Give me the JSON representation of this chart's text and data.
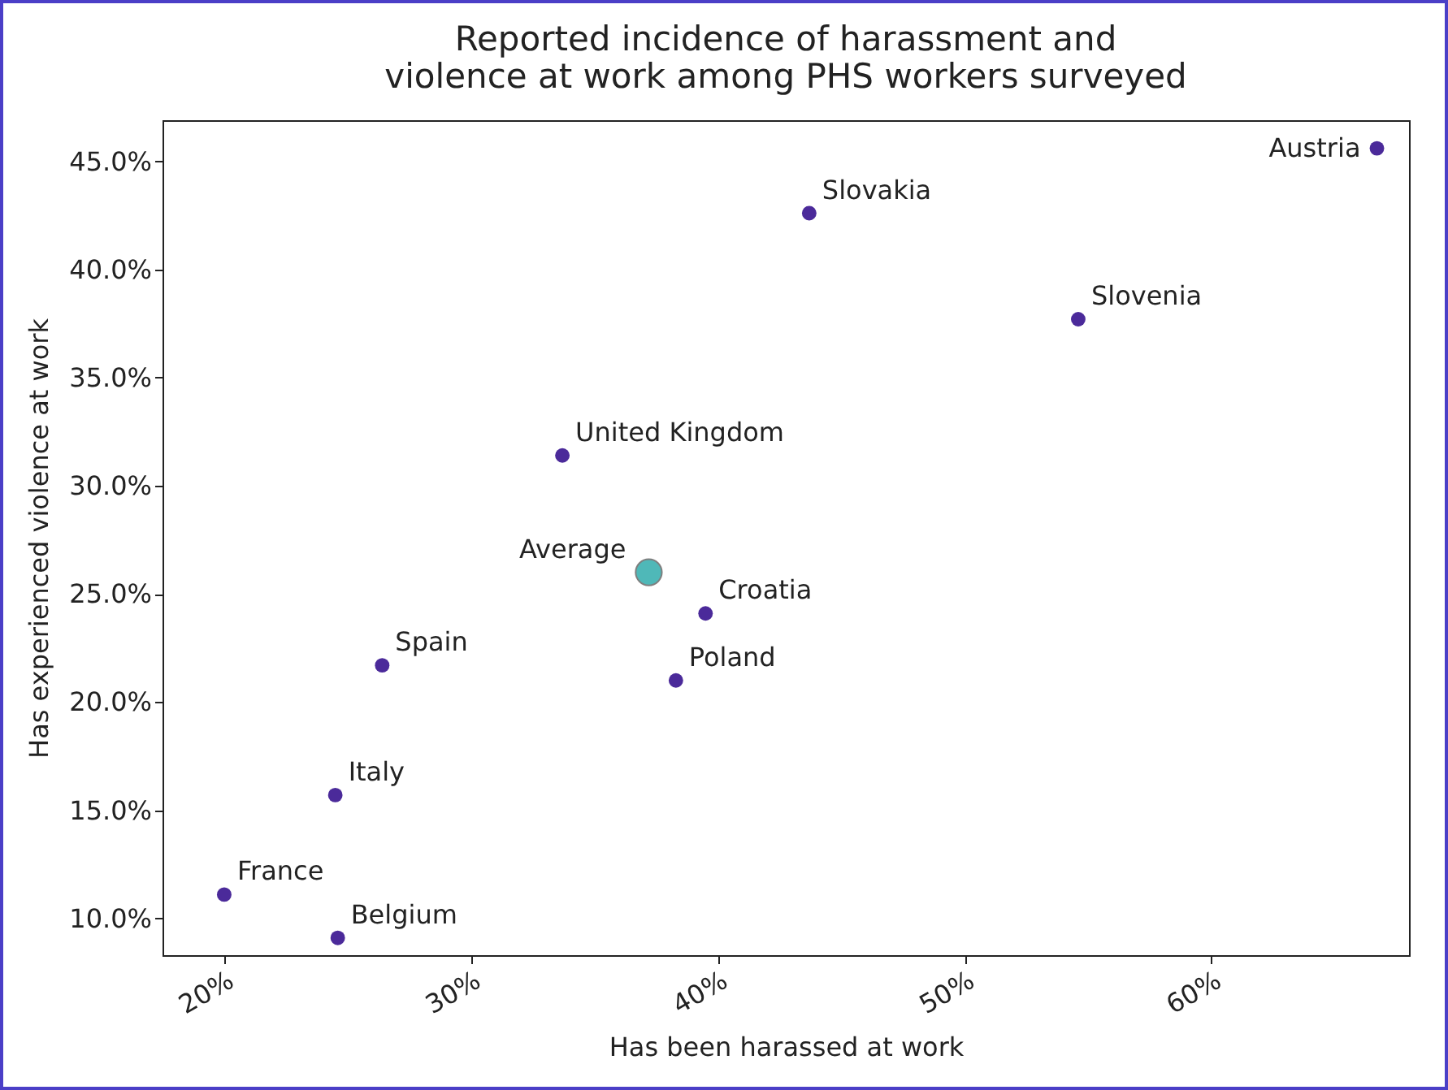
{
  "chart_data": {
    "type": "scatter",
    "title": [
      "Reported incidence of harassment and",
      "violence at work among PHS workers surveyed"
    ],
    "xlabel": "Has been harassed at work",
    "ylabel": "Has experienced violence at work",
    "xlim": [
      17.5,
      68
    ],
    "ylim": [
      8.3,
      46.9
    ],
    "xticks": [
      {
        "value": 20,
        "label": "20%"
      },
      {
        "value": 30,
        "label": "30%"
      },
      {
        "value": 40,
        "label": "40%"
      },
      {
        "value": 50,
        "label": "50%"
      },
      {
        "value": 60,
        "label": "60%"
      }
    ],
    "yticks": [
      {
        "value": 10,
        "label": "10.0%"
      },
      {
        "value": 15,
        "label": "15.0%"
      },
      {
        "value": 20,
        "label": "20.0%"
      },
      {
        "value": 25,
        "label": "25.0%"
      },
      {
        "value": 30,
        "label": "30.0%"
      },
      {
        "value": 35,
        "label": "35.0%"
      },
      {
        "value": 40,
        "label": "40.0%"
      },
      {
        "value": 45,
        "label": "45.0%"
      }
    ],
    "series": [
      {
        "color": "#4b2a9a",
        "x": [
          66.7,
          43.7,
          54.6,
          33.7,
          39.5,
          38.3,
          26.4,
          24.5,
          20.0,
          24.6
        ],
        "values": [
          45.6,
          42.6,
          37.7,
          31.4,
          24.1,
          21.0,
          21.7,
          15.7,
          11.1,
          9.1
        ]
      },
      {
        "name": "Average",
        "color": "#4fb8b8",
        "x": [
          37.2
        ],
        "values": [
          26.0
        ]
      }
    ],
    "annotations": [
      {
        "text": "Austria",
        "x": 66.7,
        "y": 45.6
      },
      {
        "text": "Slovakia",
        "x": 43.7,
        "y": 42.6
      },
      {
        "text": "Slovenia",
        "x": 54.6,
        "y": 37.7
      },
      {
        "text": "United Kingdom",
        "x": 33.7,
        "y": 31.4
      },
      {
        "text": "Croatia",
        "x": 39.5,
        "y": 24.1
      },
      {
        "text": "Poland",
        "x": 38.3,
        "y": 21.0
      },
      {
        "text": "Spain",
        "x": 26.4,
        "y": 21.7
      },
      {
        "text": "Italy",
        "x": 24.5,
        "y": 15.7
      },
      {
        "text": "France",
        "x": 20.0,
        "y": 11.1
      },
      {
        "text": "Belgium",
        "x": 24.6,
        "y": 9.1
      }
    ],
    "grid": false,
    "marker": "circle"
  }
}
